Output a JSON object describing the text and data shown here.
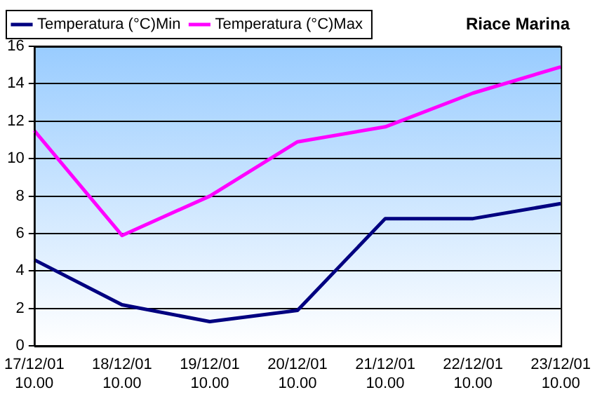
{
  "chart_data": {
    "type": "line",
    "title": "Riace Marina",
    "categories": [
      "17/12/01 10.00",
      "18/12/01 10.00",
      "19/12/01 10.00",
      "20/12/01 10.00",
      "21/12/01 10.00",
      "22/12/01 10.00",
      "23/12/01 10.00"
    ],
    "series": [
      {
        "name": "Temperatura (°C)Min",
        "color": "#000080",
        "values": [
          4.6,
          2.2,
          1.3,
          1.9,
          6.8,
          6.8,
          7.6
        ]
      },
      {
        "name": "Temperatura (°C)Max",
        "color": "#ff00ff",
        "values": [
          11.5,
          5.9,
          8.0,
          10.9,
          11.7,
          13.5,
          14.9
        ]
      }
    ],
    "ylim": [
      0,
      16
    ],
    "yticks": [
      0,
      2,
      4,
      6,
      8,
      10,
      12,
      14,
      16
    ],
    "grid": "y",
    "legend": "top left",
    "marker": "none",
    "line_style": "solid"
  }
}
